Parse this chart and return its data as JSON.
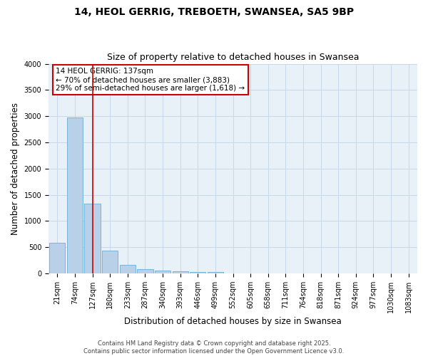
{
  "title_line1": "14, HEOL GERRIG, TREBOETH, SWANSEA, SA5 9BP",
  "title_line2": "Size of property relative to detached houses in Swansea",
  "xlabel": "Distribution of detached houses by size in Swansea",
  "ylabel": "Number of detached properties",
  "categories": [
    "21sqm",
    "74sqm",
    "127sqm",
    "180sqm",
    "233sqm",
    "287sqm",
    "340sqm",
    "393sqm",
    "446sqm",
    "499sqm",
    "552sqm",
    "605sqm",
    "658sqm",
    "711sqm",
    "764sqm",
    "818sqm",
    "871sqm",
    "924sqm",
    "977sqm",
    "1030sqm",
    "1083sqm"
  ],
  "values": [
    590,
    2970,
    1330,
    430,
    165,
    80,
    55,
    35,
    30,
    30,
    0,
    0,
    0,
    0,
    0,
    0,
    0,
    0,
    0,
    0,
    0
  ],
  "bar_color": "#b8d0e8",
  "bar_edge_color": "#6baed6",
  "vline_x_index": 2,
  "vline_color": "#cc0000",
  "ylim_max": 4000,
  "yticks": [
    0,
    500,
    1000,
    1500,
    2000,
    2500,
    3000,
    3500,
    4000
  ],
  "annotation_title": "14 HEOL GERRIG: 137sqm",
  "annotation_line1": "← 70% of detached houses are smaller (3,883)",
  "annotation_line2": "29% of semi-detached houses are larger (1,618) →",
  "annotation_box_color": "#cc0000",
  "grid_color": "#c8d8eb",
  "plot_bg_color": "#e8f0f8",
  "fig_bg_color": "#ffffff",
  "footer_line1": "Contains HM Land Registry data © Crown copyright and database right 2025.",
  "footer_line2": "Contains public sector information licensed under the Open Government Licence v3.0.",
  "title_fontsize": 10,
  "subtitle_fontsize": 9,
  "axis_label_fontsize": 8.5,
  "tick_fontsize": 7,
  "annotation_fontsize": 7.5,
  "footer_fontsize": 6
}
